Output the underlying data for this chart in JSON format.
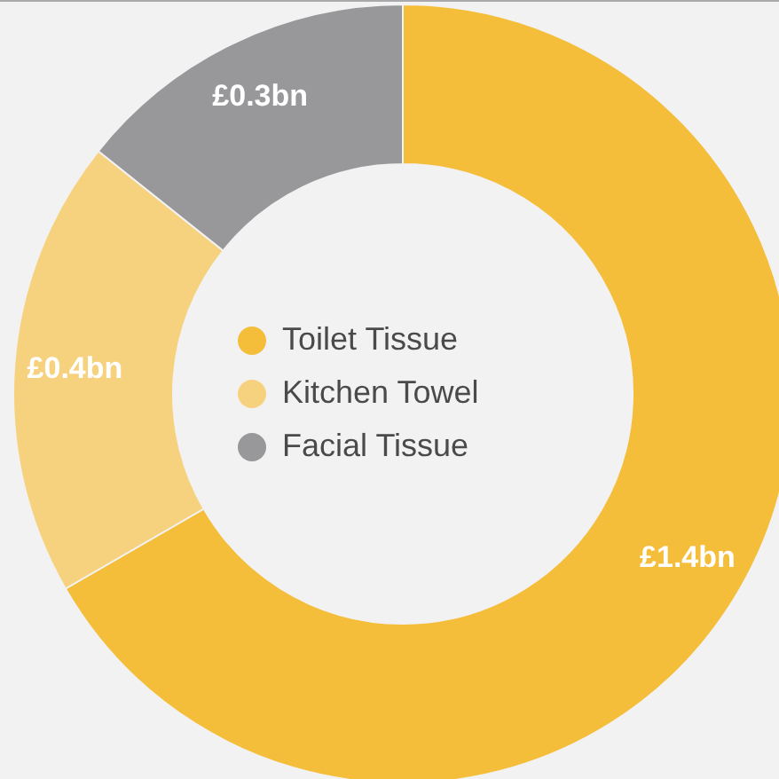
{
  "chart_data": {
    "type": "donut",
    "categories": [
      "Toilet Tissue",
      "Kitchen Towel",
      "Facial Tissue"
    ],
    "values": [
      1.4,
      0.4,
      0.3
    ],
    "colors": [
      "#f4be3a",
      "#f7d27e",
      "#98989b"
    ],
    "value_labels": [
      "£1.4bn",
      "£0.4bn",
      "£0.3bn"
    ],
    "legend": "center"
  }
}
